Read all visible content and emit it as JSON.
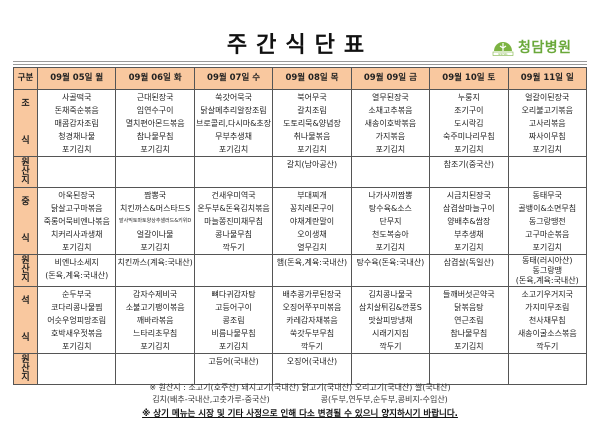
{
  "title": "주간식단표",
  "hospital": {
    "name": "청담병원",
    "logo_text": "RUSK",
    "brand_color": "#6aa83a"
  },
  "colors": {
    "header_bg": "#f9c89f"
  },
  "table": {
    "corner_label": "구분",
    "days": [
      "09월 05일 월",
      "09월 06일 화",
      "09월 07일 수",
      "09월 08일 목",
      "09월 09일 금",
      "09월 10일 토",
      "09월 11일 일"
    ],
    "origin_label": [
      "원",
      "산",
      "지"
    ],
    "meals": [
      {
        "label": [
          "조",
          "식"
        ],
        "menu": [
          [
            "사골떡국",
            "돈채죽순볶음",
            "매콤감자조림",
            "청경채나물",
            "포기김치"
          ],
          [
            "근대된장국",
            "임연수구이",
            "멸치편아몬드볶음",
            "참나물무침",
            "포기김치"
          ],
          [
            "쑥갓어묵국",
            "닭살메추리알장조림",
            "브로콜리,다시마&초장",
            "무부추생채",
            "포기김치"
          ],
          [
            "북어무국",
            "갈치조림",
            "도토리묵&양념장",
            "취나물볶음",
            "포기김치"
          ],
          [
            "열무된장국",
            "소채고추볶음",
            "새송이호박볶음",
            "가지볶음",
            "포기김치"
          ],
          [
            "누룽지",
            "조기구이",
            "도시락김",
            "숙주미나리무침",
            "포기김치"
          ],
          [
            "얼갈이된장국",
            "오리불고기볶음",
            "고사리볶음",
            "짜사이무침",
            "포기김치"
          ]
        ],
        "origin": [
          [],
          [],
          [],
          [
            "갈치(남아공산)"
          ],
          [],
          [
            "참조기(중국산)"
          ],
          []
        ]
      },
      {
        "label": [
          "중",
          "식"
        ],
        "menu": [
          [
            "아욱된장국",
            "닭살고구마볶음",
            "죽롱어묵비엔나볶음",
            "치커리사과생채",
            "포기김치"
          ],
          [
            "짬뽕국",
            "치킨까스&머스타드S",
            "발사믹토마토양상추샐러드&키위D",
            "얼갈이나물",
            "포기김치"
          ],
          [
            "건새우미역국",
            "온두부&돈육김치볶음",
            "마늘쫑진미채무침",
            "콩나물무침",
            "깍두기"
          ],
          [
            "부대찌개",
            "꽁치레몬구이",
            "야채계란말이",
            "오이생채",
            "열무김치"
          ],
          [
            "나가사끼짬뽕",
            "탕수육&소스",
            "단무지",
            "천도복숭아",
            "포기김치"
          ],
          [
            "시금치된장국",
            "삼겹살마늘구이",
            "양배추&쌈장",
            "부추생채",
            "포기김치"
          ],
          [
            "동태무국",
            "골뱅이&소면무침",
            "동그랑땡전",
            "고구마순볶음",
            "포기김치"
          ]
        ],
        "origin": [
          [
            "비엔나소세지",
            "(돈육,계육:국내산)"
          ],
          [
            "치킨까스(계육:국내산)"
          ],
          [],
          [
            "햄(돈육,계육:국내산)"
          ],
          [
            "탕수육(돈육:국내산)"
          ],
          [
            "삼겹살(독일산)"
          ],
          [
            "동태(러시아산)",
            "동그랑땡",
            "(돈육,계육:국내산)"
          ]
        ]
      },
      {
        "label": [
          "석",
          "식"
        ],
        "menu": [
          [
            "순두부국",
            "코다리콩나물찜",
            "어슷우엉피망조림",
            "호박새우젓볶음",
            "포기김치"
          ],
          [
            "감자수제비국",
            "소불고기팽이볶음",
            "깨바라볶음",
            "느타리초무침",
            "포기김치"
          ],
          [
            "뼈다귀감자탕",
            "고등어구이",
            "콩조림",
            "비름나물무침",
            "포기김치"
          ],
          [
            "배추콩가루된장국",
            "오징어쭈꾸미볶음",
            "카레감자채볶음",
            "쑥갓두부무침",
            "깍두기"
          ],
          [
            "김치콩나물국",
            "삼치살튀김&깐풍S",
            "맛살피망냉채",
            "시래기지짐",
            "깍두기"
          ],
          [
            "들깨버섯곤약국",
            "닭볶음탕",
            "연근조림",
            "참나물무침",
            "포기김치"
          ],
          [
            "소고기우거지국",
            "가지미무조림",
            "천사채무침",
            "새송이굴소스볶음",
            "깍두기"
          ]
        ],
        "origin": [
          [],
          [],
          [
            "고등어(국내산)"
          ],
          [
            "오징어(국내산)"
          ],
          [],
          [],
          []
        ]
      }
    ]
  },
  "footer": {
    "origin_line1": "※ 원산지 : 소고기(호주산)    돼지고기(국내산)    닭고기(국내산)    오리고기(국내산)    쌀(국내산)",
    "origin_line2": "김치(배추-국내산,고춧가루-중국산)                    콩(두부,연두부,순두부,콩비지-수입산)",
    "notice": "※ 상기 메뉴는 시장 및 기타 사정으로 인해 다소 변경될 수 있으니 양지하시기 바랍니다."
  }
}
